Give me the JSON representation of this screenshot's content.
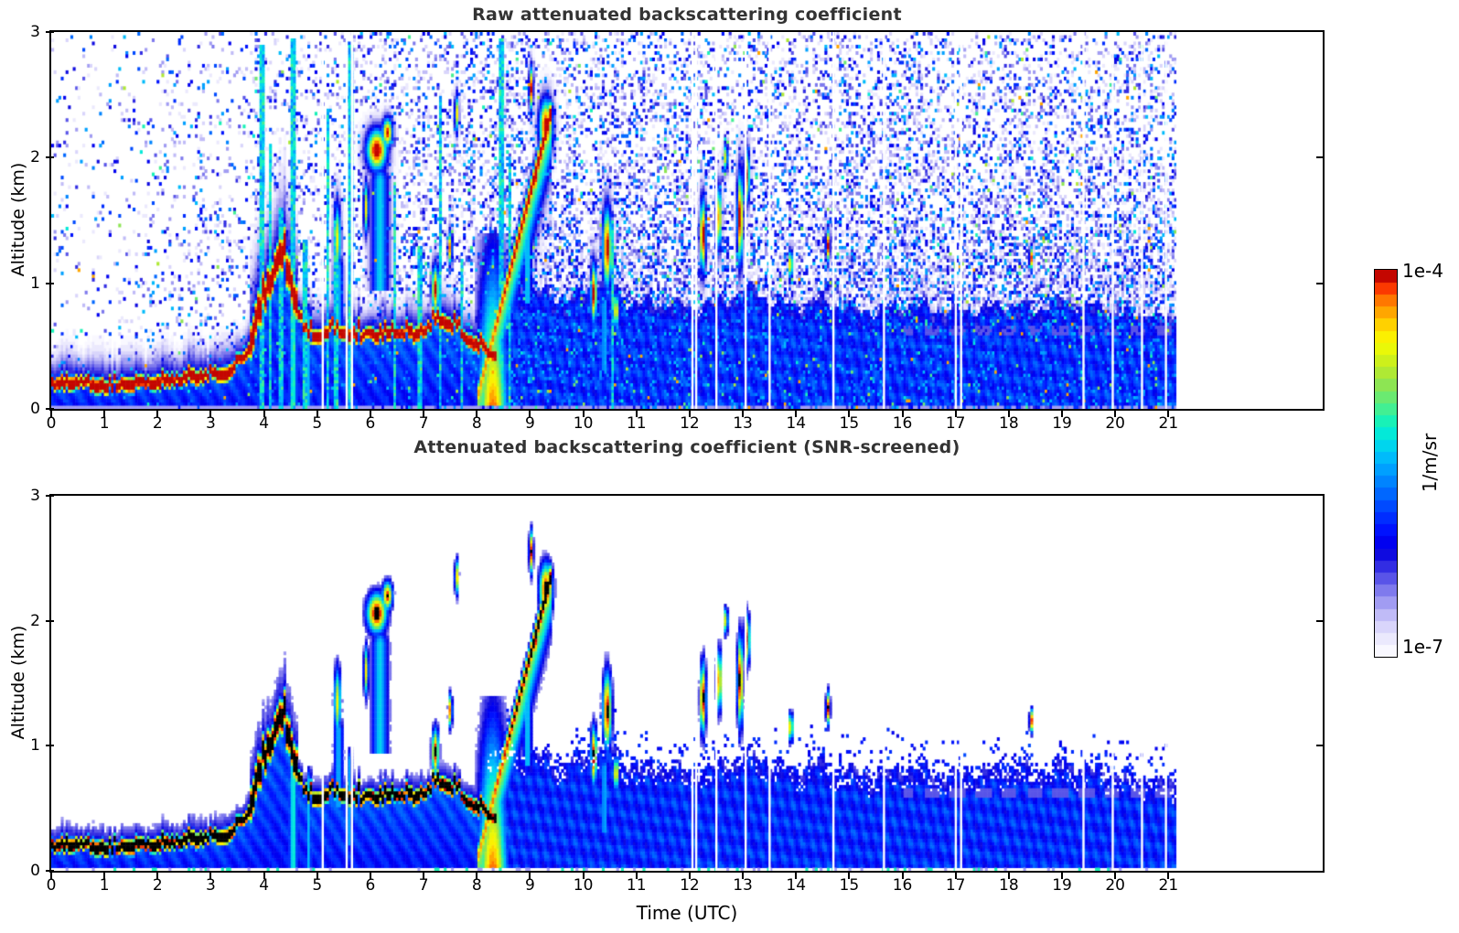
{
  "figure": {
    "background": "#ffffff"
  },
  "panels": {
    "raw": {
      "title": "Raw attenuated backscattering coefficient",
      "ylabel": "Altitude (km)"
    },
    "screened": {
      "title": "Attenuated backscattering coefficient (SNR-screened)",
      "ylabel": "Altitude (km)"
    }
  },
  "axes": {
    "xlabel": "Time (UTC)",
    "x_tick_labels": [
      "0",
      "1",
      "2",
      "3",
      "4",
      "5",
      "6",
      "7",
      "8",
      "9",
      "10",
      "11",
      "12",
      "13",
      "14",
      "15",
      "16",
      "17",
      "18",
      "19",
      "20",
      "21"
    ],
    "y_tick_labels": [
      "0",
      "1",
      "2",
      "3"
    ]
  },
  "colorbar": {
    "top_label": "1e-4",
    "bottom_label": "1e-7",
    "unit_label": "1/m/sr"
  },
  "chart_data": {
    "type": "heatmap",
    "titles": [
      "Raw attenuated backscattering coefficient",
      "Attenuated backscattering coefficient (SNR-screened)"
    ],
    "xlabel": "Time (UTC)",
    "ylabel": "Altitude (km)",
    "x_range_hours": [
      0,
      23.9
    ],
    "x_ticks": [
      0,
      1,
      2,
      3,
      4,
      5,
      6,
      7,
      8,
      9,
      10,
      11,
      12,
      13,
      14,
      15,
      16,
      17,
      18,
      19,
      20,
      21
    ],
    "y_range_km": [
      0,
      3
    ],
    "y_ticks": [
      0,
      1,
      2,
      3
    ],
    "color_scale": {
      "units": "1/m/sr",
      "type": "log",
      "min": 1e-07,
      "max": 0.0001,
      "offscale_high_color_screened": "#000000",
      "colormap_stops": [
        [
          0.0,
          "#ffffff"
        ],
        [
          0.04,
          "#efedfe"
        ],
        [
          0.08,
          "#d8d4fb"
        ],
        [
          0.12,
          "#b7b2f6"
        ],
        [
          0.16,
          "#8d88ef"
        ],
        [
          0.2,
          "#5d58e9"
        ],
        [
          0.24,
          "#2b26e2"
        ],
        [
          0.27,
          "#0a06e0"
        ],
        [
          0.3,
          "#0000f2"
        ],
        [
          0.33,
          "#0013ff"
        ],
        [
          0.37,
          "#0036ff"
        ],
        [
          0.41,
          "#005cff"
        ],
        [
          0.45,
          "#0081ff"
        ],
        [
          0.49,
          "#00a5ff"
        ],
        [
          0.53,
          "#00c8f8"
        ],
        [
          0.57,
          "#00e6e0"
        ],
        [
          0.6,
          "#0cf2c2"
        ],
        [
          0.63,
          "#33f0a0"
        ],
        [
          0.66,
          "#5cec7c"
        ],
        [
          0.7,
          "#8ae556"
        ],
        [
          0.74,
          "#b5ea2e"
        ],
        [
          0.78,
          "#daf410"
        ],
        [
          0.81,
          "#f6fb02"
        ],
        [
          0.84,
          "#ffe900"
        ],
        [
          0.87,
          "#ffc400"
        ],
        [
          0.9,
          "#ff9900"
        ],
        [
          0.93,
          "#ff6a00"
        ],
        [
          0.955,
          "#fb3500"
        ],
        [
          0.975,
          "#e00f00"
        ],
        [
          0.99,
          "#b40000"
        ],
        [
          1.0,
          "#820000"
        ]
      ]
    },
    "data_end_hour": 21.15,
    "data_gaps_hours": [
      5.1,
      5.55,
      5.65,
      12.05,
      12.12,
      12.5,
      13.05,
      13.5,
      14.7,
      15.65,
      17.0,
      17.1,
      19.4,
      19.95,
      20.5,
      20.95
    ],
    "aerosol_band_center_km": [
      [
        0,
        0.18
      ],
      [
        0.5,
        0.2
      ],
      [
        1,
        0.16
      ],
      [
        1.5,
        0.18
      ],
      [
        2,
        0.2
      ],
      [
        2.5,
        0.22
      ],
      [
        3,
        0.25
      ],
      [
        3.4,
        0.28
      ],
      [
        3.7,
        0.45
      ],
      [
        3.95,
        0.8
      ],
      [
        4.2,
        1.08
      ],
      [
        4.4,
        1.15
      ],
      [
        4.55,
        0.9
      ],
      [
        4.75,
        0.62
      ],
      [
        5,
        0.55
      ],
      [
        5.3,
        0.62
      ],
      [
        5.6,
        0.58
      ],
      [
        5.9,
        0.55
      ],
      [
        6.2,
        0.57
      ],
      [
        6.5,
        0.6
      ],
      [
        6.8,
        0.57
      ],
      [
        7.1,
        0.63
      ],
      [
        7.35,
        0.7
      ],
      [
        7.6,
        0.62
      ],
      [
        7.9,
        0.52
      ],
      [
        8.3,
        0.42
      ]
    ],
    "boundary_layer_top_km": [
      [
        8.2,
        1.0
      ],
      [
        9,
        0.95
      ],
      [
        9.6,
        0.88
      ],
      [
        10,
        0.92
      ],
      [
        10.4,
        1.05
      ],
      [
        10.8,
        0.88
      ],
      [
        11.2,
        0.82
      ],
      [
        11.6,
        0.85
      ],
      [
        12,
        0.8
      ],
      [
        12.4,
        0.82
      ],
      [
        12.8,
        0.9
      ],
      [
        13.2,
        0.95
      ],
      [
        13.6,
        0.85
      ],
      [
        14,
        0.82
      ],
      [
        14.5,
        0.86
      ],
      [
        15,
        0.8
      ],
      [
        15.5,
        0.78
      ],
      [
        16,
        0.83
      ],
      [
        16.5,
        0.8
      ],
      [
        17,
        0.77
      ],
      [
        17.5,
        0.8
      ],
      [
        18,
        0.83
      ],
      [
        18.5,
        0.8
      ],
      [
        19,
        0.86
      ],
      [
        19.5,
        0.82
      ],
      [
        20,
        0.78
      ],
      [
        20.6,
        0.74
      ],
      [
        21.15,
        0.7
      ]
    ],
    "clouds": [
      [
        6.12,
        0.2,
        2.06,
        0.17,
        1.06
      ],
      [
        6.32,
        0.1,
        2.2,
        0.12,
        1.0
      ],
      [
        5.38,
        0.07,
        1.35,
        0.3,
        0.8
      ],
      [
        5.92,
        0.05,
        1.6,
        0.22,
        0.82
      ],
      [
        7.22,
        0.07,
        0.95,
        0.2,
        1.02
      ],
      [
        7.5,
        0.04,
        1.28,
        0.14,
        0.95
      ],
      [
        9.3,
        0.13,
        2.25,
        0.22,
        1.06
      ],
      [
        9.12,
        0.06,
        1.85,
        0.15,
        1.0
      ],
      [
        9.02,
        0.04,
        2.55,
        0.18,
        1.0
      ],
      [
        10.2,
        0.06,
        0.92,
        0.25,
        1.03
      ],
      [
        10.45,
        0.09,
        1.28,
        0.33,
        1.03
      ],
      [
        10.62,
        0.05,
        0.78,
        0.15,
        0.92
      ],
      [
        12.25,
        0.06,
        1.38,
        0.3,
        1.05
      ],
      [
        12.55,
        0.05,
        1.52,
        0.26,
        1.0
      ],
      [
        12.95,
        0.06,
        1.52,
        0.38,
        1.05
      ],
      [
        13.08,
        0.05,
        1.85,
        0.22,
        1.0
      ],
      [
        13.9,
        0.04,
        1.15,
        0.12,
        1.0
      ],
      [
        14.6,
        0.04,
        1.3,
        0.14,
        1.0
      ],
      [
        18.42,
        0.035,
        1.2,
        0.1,
        1.0
      ],
      [
        7.62,
        0.04,
        2.35,
        0.15,
        0.85
      ],
      [
        12.68,
        0.04,
        2.0,
        0.12,
        0.85
      ]
    ],
    "virga": [
      [
        6.18,
        0.17,
        1.95,
        0.95,
        0.55
      ],
      [
        5.4,
        0.1,
        1.25,
        0.5,
        0.5
      ],
      [
        8.95,
        0.09,
        1.6,
        0.85,
        0.55
      ],
      [
        4.55,
        0.1,
        0.95,
        0.0,
        0.6
      ],
      [
        4.85,
        0.05,
        0.85,
        0.0,
        0.55
      ],
      [
        10.4,
        0.09,
        0.95,
        0.3,
        0.5
      ],
      [
        5.6,
        0.06,
        1.0,
        0.2,
        0.5
      ]
    ],
    "precip_ramp": {
      "t_start": 8.05,
      "alt_start_km": 0.15,
      "t_end": 9.3,
      "alt_end_km": 2.2
    },
    "vertical_streaks_raw": [
      [
        3.95,
        2.9
      ],
      [
        4.12,
        2.1
      ],
      [
        4.32,
        1.6
      ],
      [
        4.55,
        2.95
      ],
      [
        4.78,
        1.35
      ],
      [
        5.2,
        2.4
      ],
      [
        5.35,
        1.5
      ],
      [
        5.62,
        2.9
      ],
      [
        6.45,
        1.8
      ],
      [
        6.92,
        1.3
      ],
      [
        7.32,
        2.5
      ],
      [
        7.72,
        1.2
      ],
      [
        8.45,
        2.95
      ],
      [
        8.62,
        2.0
      ],
      [
        10.55,
        1.5
      ]
    ],
    "raw_noise_note": "raw panel shows white/blue/cyan speckle noise, density increasing toward low altitude and after hour 8; screened panel is white where SNR is low and black where signal exceeds 1e-4"
  }
}
